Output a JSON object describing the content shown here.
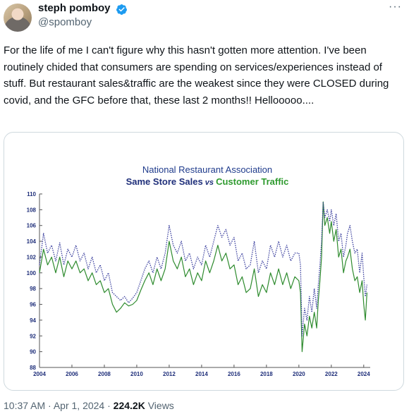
{
  "author": {
    "name": "steph pomboy",
    "handle": "@spomboy",
    "avatar_icon": "profile-photo",
    "verified_icon": "verified-badge-icon",
    "verified_color": "#1d9bf0"
  },
  "more_icon": "more-options-icon",
  "more_label": "···",
  "tweet": {
    "text": "For the life of me I can't figure why this hasn't gotten more attention. I've been routinely chided that consumers are spending on services/experiences instead of stuff.  But restaurant sales&traffic are the weakest since they were CLOSED during covid, and the GFC before that, these last 2 months!!  Hellooooo...."
  },
  "footer": {
    "time": "10:37 AM",
    "separator": " · ",
    "date": "Apr 1, 2024",
    "views_count": "224.2K",
    "views_label": " Views"
  },
  "chart_data": {
    "type": "line",
    "title_line1": "National Restaurant Association",
    "title_part_a": "Same Store Sales",
    "title_vs": " vs ",
    "title_part_b": "Customer Traffic",
    "xlim": [
      2004,
      2024.4
    ],
    "ylim": [
      88,
      110
    ],
    "x_ticks": [
      2004,
      2006,
      2008,
      2010,
      2012,
      2014,
      2016,
      2018,
      2020,
      2022,
      2024
    ],
    "y_ticks": [
      88,
      90,
      92,
      94,
      96,
      98,
      100,
      102,
      104,
      106,
      108,
      110
    ],
    "grid": false,
    "legend": "none",
    "colors": {
      "sales": "#3a3f9e",
      "traffic": "#2e8b2e",
      "title1": "#1f3b8c",
      "title_b": "#2e9a2e"
    },
    "series": [
      {
        "name": "Same Store Sales",
        "style": "dotted",
        "points": [
          [
            2004.0,
            101.0
          ],
          [
            2004.25,
            105.0
          ],
          [
            2004.5,
            102.5
          ],
          [
            2004.75,
            103.5
          ],
          [
            2005.0,
            101.5
          ],
          [
            2005.25,
            103.8
          ],
          [
            2005.5,
            101.0
          ],
          [
            2005.75,
            103.0
          ],
          [
            2006.0,
            102.0
          ],
          [
            2006.25,
            103.5
          ],
          [
            2006.5,
            101.5
          ],
          [
            2006.75,
            102.5
          ],
          [
            2007.0,
            100.5
          ],
          [
            2007.25,
            102.0
          ],
          [
            2007.5,
            100.0
          ],
          [
            2007.75,
            101.0
          ],
          [
            2008.0,
            99.0
          ],
          [
            2008.25,
            100.0
          ],
          [
            2008.5,
            97.5
          ],
          [
            2008.75,
            97.0
          ],
          [
            2009.0,
            96.5
          ],
          [
            2009.25,
            97.0
          ],
          [
            2009.5,
            96.2
          ],
          [
            2009.75,
            96.8
          ],
          [
            2010.0,
            97.5
          ],
          [
            2010.25,
            99.0
          ],
          [
            2010.5,
            100.5
          ],
          [
            2010.75,
            101.5
          ],
          [
            2011.0,
            100.0
          ],
          [
            2011.25,
            102.0
          ],
          [
            2011.5,
            100.5
          ],
          [
            2011.75,
            102.5
          ],
          [
            2012.0,
            106.0
          ],
          [
            2012.25,
            103.5
          ],
          [
            2012.5,
            102.5
          ],
          [
            2012.75,
            104.0
          ],
          [
            2013.0,
            101.5
          ],
          [
            2013.25,
            102.5
          ],
          [
            2013.5,
            100.5
          ],
          [
            2013.75,
            102.0
          ],
          [
            2014.0,
            101.0
          ],
          [
            2014.25,
            103.5
          ],
          [
            2014.5,
            102.0
          ],
          [
            2014.75,
            104.0
          ],
          [
            2015.0,
            106.0
          ],
          [
            2015.25,
            104.5
          ],
          [
            2015.5,
            105.5
          ],
          [
            2015.75,
            103.5
          ],
          [
            2016.0,
            104.5
          ],
          [
            2016.25,
            101.5
          ],
          [
            2016.5,
            102.5
          ],
          [
            2016.75,
            100.5
          ],
          [
            2017.0,
            101.0
          ],
          [
            2017.25,
            104.0
          ],
          [
            2017.5,
            100.0
          ],
          [
            2017.75,
            101.5
          ],
          [
            2018.0,
            100.5
          ],
          [
            2018.25,
            103.5
          ],
          [
            2018.5,
            102.0
          ],
          [
            2018.75,
            104.0
          ],
          [
            2019.0,
            102.0
          ],
          [
            2019.25,
            103.5
          ],
          [
            2019.5,
            101.5
          ],
          [
            2019.75,
            102.5
          ],
          [
            2020.0,
            102.5
          ],
          [
            2020.1,
            101.0
          ],
          [
            2020.2,
            92.0
          ],
          [
            2020.35,
            95.5
          ],
          [
            2020.5,
            94.0
          ],
          [
            2020.65,
            97.0
          ],
          [
            2020.8,
            95.0
          ],
          [
            2020.95,
            98.0
          ],
          [
            2021.1,
            95.5
          ],
          [
            2021.2,
            98.5
          ],
          [
            2021.3,
            101.0
          ],
          [
            2021.4,
            104.0
          ],
          [
            2021.5,
            109.0
          ],
          [
            2021.6,
            107.0
          ],
          [
            2021.75,
            108.0
          ],
          [
            2021.9,
            106.5
          ],
          [
            2022.0,
            108.0
          ],
          [
            2022.15,
            106.0
          ],
          [
            2022.3,
            107.5
          ],
          [
            2022.45,
            104.0
          ],
          [
            2022.6,
            105.0
          ],
          [
            2022.75,
            102.0
          ],
          [
            2022.9,
            103.5
          ],
          [
            2023.0,
            105.0
          ],
          [
            2023.15,
            106.0
          ],
          [
            2023.3,
            104.0
          ],
          [
            2023.45,
            102.5
          ],
          [
            2023.6,
            103.0
          ],
          [
            2023.75,
            100.0
          ],
          [
            2023.9,
            102.5
          ],
          [
            2024.0,
            99.5
          ],
          [
            2024.1,
            97.0
          ],
          [
            2024.2,
            98.5
          ]
        ]
      },
      {
        "name": "Customer Traffic",
        "style": "solid",
        "points": [
          [
            2004.0,
            100.0
          ],
          [
            2004.25,
            103.0
          ],
          [
            2004.5,
            101.0
          ],
          [
            2004.75,
            102.0
          ],
          [
            2005.0,
            100.0
          ],
          [
            2005.25,
            102.0
          ],
          [
            2005.5,
            99.5
          ],
          [
            2005.75,
            101.5
          ],
          [
            2006.0,
            100.5
          ],
          [
            2006.25,
            101.5
          ],
          [
            2006.5,
            100.0
          ],
          [
            2006.75,
            100.5
          ],
          [
            2007.0,
            99.0
          ],
          [
            2007.25,
            100.0
          ],
          [
            2007.5,
            98.5
          ],
          [
            2007.75,
            99.0
          ],
          [
            2008.0,
            97.5
          ],
          [
            2008.25,
            98.0
          ],
          [
            2008.5,
            96.0
          ],
          [
            2008.75,
            95.0
          ],
          [
            2009.0,
            95.5
          ],
          [
            2009.25,
            96.2
          ],
          [
            2009.5,
            95.8
          ],
          [
            2009.75,
            96.0
          ],
          [
            2010.0,
            96.5
          ],
          [
            2010.25,
            97.8
          ],
          [
            2010.5,
            99.0
          ],
          [
            2010.75,
            100.0
          ],
          [
            2011.0,
            98.5
          ],
          [
            2011.25,
            100.5
          ],
          [
            2011.5,
            99.0
          ],
          [
            2011.75,
            100.5
          ],
          [
            2012.0,
            104.0
          ],
          [
            2012.25,
            101.5
          ],
          [
            2012.5,
            100.5
          ],
          [
            2012.75,
            102.0
          ],
          [
            2013.0,
            99.5
          ],
          [
            2013.25,
            100.5
          ],
          [
            2013.5,
            98.5
          ],
          [
            2013.75,
            100.0
          ],
          [
            2014.0,
            99.0
          ],
          [
            2014.25,
            101.5
          ],
          [
            2014.5,
            100.0
          ],
          [
            2014.75,
            101.5
          ],
          [
            2015.0,
            103.5
          ],
          [
            2015.25,
            101.5
          ],
          [
            2015.5,
            102.5
          ],
          [
            2015.75,
            100.5
          ],
          [
            2016.0,
            101.0
          ],
          [
            2016.25,
            98.5
          ],
          [
            2016.5,
            99.5
          ],
          [
            2016.75,
            97.5
          ],
          [
            2017.0,
            98.0
          ],
          [
            2017.25,
            100.5
          ],
          [
            2017.5,
            97.0
          ],
          [
            2017.75,
            98.5
          ],
          [
            2018.0,
            97.5
          ],
          [
            2018.25,
            100.0
          ],
          [
            2018.5,
            98.5
          ],
          [
            2018.75,
            100.5
          ],
          [
            2019.0,
            98.5
          ],
          [
            2019.25,
            100.0
          ],
          [
            2019.5,
            98.0
          ],
          [
            2019.75,
            99.5
          ],
          [
            2020.0,
            99.0
          ],
          [
            2020.1,
            97.5
          ],
          [
            2020.2,
            90.0
          ],
          [
            2020.35,
            93.5
          ],
          [
            2020.5,
            92.0
          ],
          [
            2020.65,
            94.5
          ],
          [
            2020.8,
            93.0
          ],
          [
            2020.95,
            95.0
          ],
          [
            2021.1,
            93.0
          ],
          [
            2021.2,
            96.5
          ],
          [
            2021.3,
            99.0
          ],
          [
            2021.4,
            102.0
          ],
          [
            2021.5,
            109.0
          ],
          [
            2021.6,
            106.0
          ],
          [
            2021.75,
            107.0
          ],
          [
            2021.9,
            105.0
          ],
          [
            2022.0,
            106.5
          ],
          [
            2022.15,
            104.0
          ],
          [
            2022.3,
            105.5
          ],
          [
            2022.45,
            102.0
          ],
          [
            2022.6,
            103.0
          ],
          [
            2022.75,
            100.0
          ],
          [
            2022.9,
            101.5
          ],
          [
            2023.0,
            102.0
          ],
          [
            2023.15,
            103.0
          ],
          [
            2023.3,
            100.5
          ],
          [
            2023.45,
            99.0
          ],
          [
            2023.6,
            99.5
          ],
          [
            2023.75,
            97.5
          ],
          [
            2023.9,
            99.0
          ],
          [
            2024.0,
            96.0
          ],
          [
            2024.1,
            94.0
          ],
          [
            2024.2,
            97.5
          ]
        ]
      }
    ]
  }
}
